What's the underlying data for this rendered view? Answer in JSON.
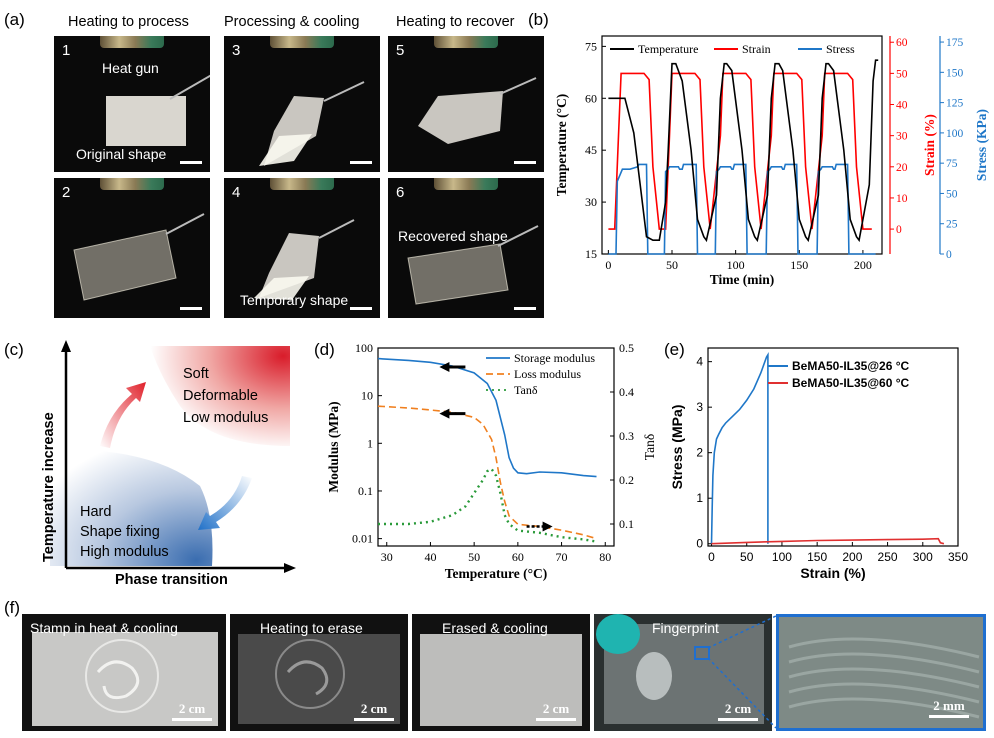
{
  "panel_labels": {
    "a": "(a)",
    "b": "(b)",
    "c": "(c)",
    "d": "(d)",
    "e": "(e)",
    "f": "(f)"
  },
  "panel_a": {
    "columns": [
      "Heating to process",
      "Processing & cooling",
      "Heating to recover"
    ],
    "photos": [
      {
        "num": "1",
        "top_text": "Heat gun",
        "bottom_text": "Original shape"
      },
      {
        "num": "3",
        "top_text": "",
        "bottom_text": ""
      },
      {
        "num": "5",
        "top_text": "",
        "bottom_text": ""
      },
      {
        "num": "2",
        "top_text": "",
        "bottom_text": ""
      },
      {
        "num": "4",
        "top_text": "",
        "bottom_text": "Temporary shape"
      },
      {
        "num": "6",
        "top_text": "Recovered shape",
        "bottom_text": ""
      }
    ]
  },
  "panel_c": {
    "y_axis": "Temperature increase",
    "x_axis": "Phase transition",
    "soft_lines": [
      "Soft",
      "Deformable",
      "Low modulus"
    ],
    "hard_lines": [
      "Hard",
      "Shape fixing",
      "High modulus"
    ]
  },
  "panel_f": {
    "photos": [
      {
        "label": "Stamp in heat & cooling",
        "scale": "2 cm"
      },
      {
        "label": "Heating to erase",
        "scale": "2 cm"
      },
      {
        "label": "Erased & cooling",
        "scale": "2 cm"
      },
      {
        "label": "Fingerprint",
        "scale": "2 cm"
      },
      {
        "label": "",
        "scale": "2 mm"
      }
    ]
  },
  "chart_data": [
    {
      "id": "b",
      "type": "line",
      "xlabel": "Time (min)",
      "ylabel": "Temperature (°C)",
      "y2label": "Strain (%)",
      "y3label": "Stress (KPa)",
      "xlim": [
        -5,
        215
      ],
      "ylim": [
        15,
        78
      ],
      "y2lim": [
        -8,
        62
      ],
      "y3lim": [
        0,
        180
      ],
      "xticks": [
        0,
        50,
        100,
        150,
        200
      ],
      "yticks": [
        15,
        30,
        45,
        60,
        75
      ],
      "y2ticks": [
        0,
        10,
        20,
        30,
        40,
        50,
        60
      ],
      "y3ticks": [
        0,
        25,
        50,
        75,
        100,
        125,
        150,
        175
      ],
      "legend": [
        "Temperature",
        "Strain",
        "Stress"
      ],
      "colors": {
        "Temperature": "#000000",
        "Strain": "#ff0000",
        "Stress": "#1f77c8"
      },
      "series": [
        {
          "name": "Temperature",
          "axis": "y",
          "x": [
            0,
            12,
            13,
            20,
            25,
            30,
            35,
            40,
            45,
            47,
            50,
            53,
            58,
            65,
            70,
            75,
            77,
            85,
            88,
            91,
            93,
            97,
            105,
            110,
            115,
            117,
            125,
            128,
            131,
            134,
            137,
            145,
            150,
            155,
            157,
            165,
            168,
            171,
            173,
            177,
            185,
            190,
            195,
            197,
            205,
            208,
            210,
            212
          ],
          "y": [
            60,
            60,
            60,
            50,
            35,
            20,
            19,
            19,
            30,
            45,
            70,
            70,
            65,
            45,
            25,
            20,
            19,
            32,
            60,
            70,
            70,
            68,
            45,
            25,
            20,
            19,
            32,
            60,
            70,
            70,
            68,
            45,
            25,
            20,
            19,
            32,
            60,
            70,
            70,
            68,
            45,
            25,
            20,
            19,
            35,
            65,
            71,
            71
          ]
        },
        {
          "name": "Strain",
          "axis": "y2",
          "x": [
            0,
            5,
            8,
            10,
            12,
            28,
            32,
            35,
            40,
            45,
            48,
            50,
            68,
            72,
            75,
            80,
            88,
            90,
            108,
            112,
            115,
            120,
            128,
            130,
            148,
            152,
            155,
            160,
            168,
            170,
            188,
            192,
            195,
            200,
            207
          ],
          "y": [
            0,
            0,
            30,
            50,
            50,
            50,
            48,
            20,
            0,
            0,
            30,
            50,
            50,
            48,
            20,
            0,
            30,
            50,
            50,
            48,
            20,
            0,
            30,
            50,
            50,
            48,
            20,
            0,
            30,
            50,
            50,
            48,
            20,
            0,
            0
          ]
        },
        {
          "name": "Stress",
          "axis": "y3",
          "x": [
            0,
            6,
            7,
            11,
            17,
            23,
            24,
            30,
            31,
            36,
            37,
            44,
            45,
            47,
            48,
            55,
            56,
            58,
            59,
            69,
            70,
            76,
            77,
            84,
            85,
            87,
            88,
            96,
            97,
            98,
            99,
            108,
            109,
            115,
            116,
            124,
            125,
            127,
            128,
            136,
            137,
            138,
            139,
            148,
            149,
            155,
            156,
            164,
            165,
            167,
            168,
            176,
            177,
            178,
            179,
            188,
            189,
            195,
            196,
            210
          ],
          "y": [
            0,
            0,
            60,
            70,
            70,
            72,
            74,
            74,
            0,
            0,
            0,
            0,
            68,
            70,
            72,
            72,
            70,
            70,
            74,
            74,
            0,
            0,
            0,
            0,
            68,
            70,
            72,
            72,
            70,
            70,
            74,
            74,
            0,
            0,
            0,
            0,
            68,
            70,
            72,
            72,
            70,
            70,
            74,
            74,
            0,
            0,
            0,
            0,
            68,
            70,
            72,
            72,
            70,
            70,
            74,
            74,
            0,
            0,
            0,
            0
          ]
        }
      ]
    },
    {
      "id": "d",
      "type": "line",
      "xlabel": "Temperature (°C)",
      "ylabel": "Modulus (MPa)",
      "y2label": "Tanδ",
      "xlim": [
        28,
        82
      ],
      "ylim_log": [
        0.007,
        100
      ],
      "y2lim": [
        0.05,
        0.5
      ],
      "xticks": [
        30,
        40,
        50,
        60,
        70,
        80
      ],
      "yticks": [
        "0.01",
        "0.1",
        "1",
        "10",
        "100"
      ],
      "y2ticks": [
        0.1,
        0.2,
        0.3,
        0.4,
        0.5
      ],
      "legend": [
        "Storage modulus",
        "Loss modulus",
        "Tanδ"
      ],
      "colors": {
        "Storage modulus": "#1f77c8",
        "Loss modulus": "#f08020",
        "Tanδ": "#2a9a3a"
      },
      "series": [
        {
          "name": "Storage modulus",
          "axis": "y",
          "x": [
            28,
            35,
            40,
            45,
            50,
            53,
            55,
            57,
            58,
            59,
            60,
            62,
            65,
            70,
            75,
            78
          ],
          "y": [
            60,
            55,
            50,
            42,
            30,
            18,
            8,
            1.5,
            0.5,
            0.3,
            0.24,
            0.23,
            0.25,
            0.24,
            0.21,
            0.2
          ]
        },
        {
          "name": "Loss modulus",
          "axis": "y",
          "x": [
            28,
            35,
            40,
            45,
            50,
            52,
            54,
            55,
            56,
            57,
            58,
            60,
            65,
            70,
            75,
            78
          ],
          "y": [
            6,
            5.5,
            5,
            4.5,
            3.5,
            2.5,
            1.2,
            0.5,
            0.15,
            0.06,
            0.03,
            0.02,
            0.018,
            0.015,
            0.012,
            0.01
          ]
        },
        {
          "name": "Tanδ",
          "axis": "y2",
          "x": [
            28,
            35,
            40,
            45,
            48,
            50,
            52,
            53,
            54,
            55,
            56,
            57,
            58,
            60,
            65,
            70,
            75,
            78
          ],
          "y": [
            0.1,
            0.1,
            0.105,
            0.12,
            0.14,
            0.17,
            0.2,
            0.22,
            0.225,
            0.21,
            0.17,
            0.12,
            0.1,
            0.085,
            0.08,
            0.07,
            0.065,
            0.06
          ]
        }
      ]
    },
    {
      "id": "e",
      "type": "line",
      "xlabel": "Strain (%)",
      "ylabel": "Stress (MPa)",
      "xlim": [
        -5,
        350
      ],
      "ylim": [
        -0.05,
        4.3
      ],
      "xticks": [
        0,
        50,
        100,
        150,
        200,
        250,
        300,
        350
      ],
      "yticks": [
        0,
        1,
        2,
        3,
        4
      ],
      "legend": [
        "BeMA50-IL35@26 °C",
        "BeMA50-IL35@60 °C"
      ],
      "colors": {
        "BeMA50-IL35@26 °C": "#1f77c8",
        "BeMA50-IL35@60 °C": "#e03030"
      },
      "series": [
        {
          "name": "BeMA50-IL35@26 °C",
          "x": [
            0,
            1,
            2,
            4,
            7,
            10,
            15,
            20,
            30,
            40,
            50,
            60,
            70,
            78,
            80,
            80,
            80
          ],
          "y": [
            0,
            0.8,
            1.5,
            2.0,
            2.3,
            2.4,
            2.55,
            2.65,
            2.8,
            2.95,
            3.15,
            3.4,
            3.75,
            4.1,
            4.15,
            2.0,
            0
          ]
        },
        {
          "name": "BeMA50-IL35@60 °C",
          "x": [
            0,
            50,
            100,
            150,
            200,
            250,
            300,
            322,
            325,
            330
          ],
          "y": [
            0,
            0.03,
            0.05,
            0.07,
            0.08,
            0.09,
            0.1,
            0.11,
            0.02,
            0
          ]
        }
      ]
    }
  ]
}
